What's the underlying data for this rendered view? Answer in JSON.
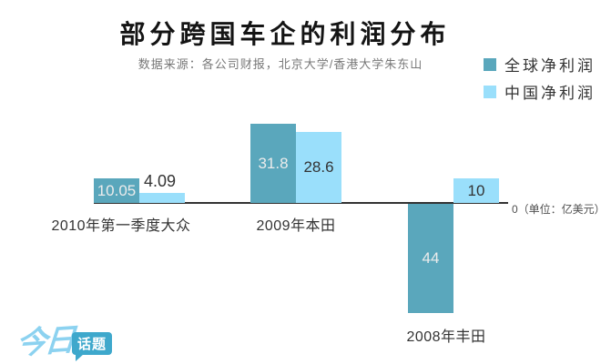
{
  "chart_data": {
    "type": "bar",
    "title": "部分跨国车企的利润分布",
    "subtitle": "数据来源：各公司财报，北京大学/香港大学朱东山",
    "unit_label": "0（单位：亿美元）",
    "unit": "亿美元",
    "legend_position": "top-right",
    "zero_baseline": true,
    "categories": [
      "2010年第一季度大众",
      "2009年本田",
      "2008年丰田"
    ],
    "legend": [
      {
        "name": "全球净利润",
        "color": "#5AA7BC"
      },
      {
        "name": "中国净利润",
        "color": "#9ADFFB"
      }
    ],
    "series": [
      {
        "name": "全球净利润",
        "values": [
          10.05,
          31.8,
          -44
        ]
      },
      {
        "name": "中国净利润",
        "values": [
          4.09,
          28.6,
          10
        ]
      }
    ],
    "value_labels": [
      [
        "10.05",
        "4.09"
      ],
      [
        "31.8",
        "28.6"
      ],
      [
        "44",
        "10"
      ]
    ]
  },
  "logo": {
    "script_text": "今日",
    "badge_text": "话题"
  }
}
